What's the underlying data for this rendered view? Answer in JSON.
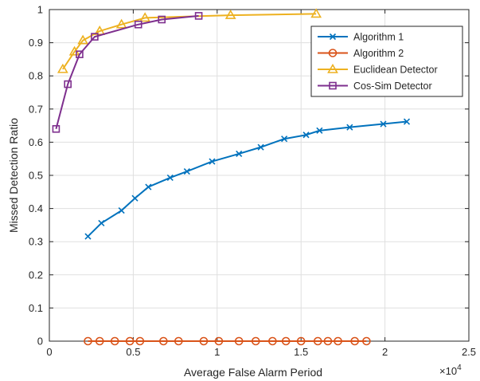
{
  "chart_data": {
    "type": "line",
    "title": "",
    "xlabel": "Average False Alarm Period",
    "ylabel": "Missed Detection Ratio",
    "x_exponent_label": "×10",
    "x_exponent_power": "4",
    "xlim": [
      0,
      25000
    ],
    "ylim": [
      0,
      1
    ],
    "x_ticks": [
      0,
      5000,
      10000,
      15000,
      20000,
      25000
    ],
    "x_tick_labels": [
      "0",
      "0.5",
      "1",
      "1.5",
      "2",
      "2.5"
    ],
    "y_ticks": [
      0,
      0.1,
      0.2,
      0.3,
      0.4,
      0.5,
      0.6,
      0.7,
      0.8,
      0.9,
      1
    ],
    "y_tick_labels": [
      "0",
      "0.1",
      "0.2",
      "0.3",
      "0.4",
      "0.5",
      "0.6",
      "0.7",
      "0.8",
      "0.9",
      "1"
    ],
    "grid": true,
    "legend_position": "top-right",
    "series": [
      {
        "name": "Algorithm 1",
        "color": "#0072BD",
        "marker": "x",
        "x": [
          2300,
          3100,
          4300,
          5100,
          5900,
          7200,
          8200,
          9700,
          11300,
          12600,
          14000,
          15300,
          16100,
          17900,
          19900,
          21300
        ],
        "y": [
          0.316,
          0.356,
          0.394,
          0.431,
          0.465,
          0.493,
          0.512,
          0.542,
          0.565,
          0.585,
          0.61,
          0.622,
          0.635,
          0.645,
          0.655,
          0.662
        ]
      },
      {
        "name": "Algorithm 2",
        "color": "#D95319",
        "marker": "o",
        "x": [
          2300,
          3000,
          3900,
          4800,
          5400,
          6800,
          7700,
          9200,
          10100,
          11300,
          12300,
          13300,
          14100,
          15000,
          16000,
          16600,
          17200,
          18200,
          18900
        ],
        "y": [
          0,
          0,
          0,
          0,
          0,
          0,
          0,
          0,
          0,
          0,
          0,
          0,
          0,
          0,
          0,
          0,
          0,
          0,
          0
        ]
      },
      {
        "name": "Euclidean Detector",
        "color": "#EDB120",
        "marker": "triangle",
        "x": [
          800,
          1500,
          2000,
          3000,
          4300,
          5700,
          10800,
          15900
        ],
        "y": [
          0.82,
          0.873,
          0.907,
          0.935,
          0.955,
          0.975,
          0.983,
          0.987
        ]
      },
      {
        "name": "Cos-Sim Detector",
        "color": "#7E2F8E",
        "marker": "square",
        "x": [
          400,
          1100,
          1800,
          2700,
          5300,
          6700,
          8900
        ],
        "y": [
          0.64,
          0.775,
          0.865,
          0.918,
          0.955,
          0.97,
          0.981
        ]
      }
    ]
  }
}
